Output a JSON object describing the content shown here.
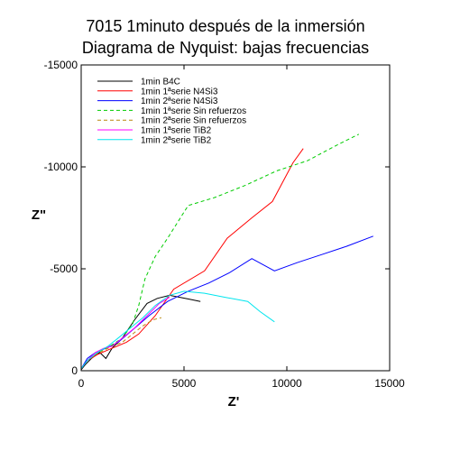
{
  "chart_data": {
    "type": "line",
    "title_lines": [
      "7015 1minuto después de la inmersión",
      "Diagrama de Nyquist: bajas frecuencias"
    ],
    "xlabel": "Z'",
    "ylabel": "Z\"",
    "xlim": [
      0,
      15000
    ],
    "ylim": [
      0,
      -15000
    ],
    "xticks": [
      0,
      5000,
      10000,
      15000
    ],
    "yticks": [
      0,
      -5000,
      -10000,
      -15000
    ],
    "grid": false,
    "legend_position": "top-left",
    "series": [
      {
        "name": "1min B4C",
        "color": "#000000",
        "dash": "solid",
        "x": [
          0,
          200,
          500,
          900,
          1200,
          1500,
          2000,
          2600,
          3200,
          3700,
          4300,
          4800,
          5300,
          5800
        ],
        "y": [
          -50,
          -300,
          -600,
          -900,
          -600,
          -1100,
          -1600,
          -2500,
          -3300,
          -3550,
          -3700,
          -3600,
          -3500,
          -3400
        ]
      },
      {
        "name": "1min 1ªserie N4Si3",
        "color": "#ff0000",
        "dash": "solid",
        "x": [
          0,
          300,
          800,
          1500,
          2200,
          2800,
          3600,
          4500,
          6000,
          7100,
          8300,
          9300,
          10300,
          10800
        ],
        "y": [
          -100,
          -500,
          -800,
          -1100,
          -1400,
          -1800,
          -2700,
          -4000,
          -4900,
          -6500,
          -7500,
          -8300,
          -10200,
          -10900
        ]
      },
      {
        "name": "1min 2ªserie N4Si3",
        "color": "#0000ff",
        "dash": "solid",
        "x": [
          0,
          300,
          700,
          1200,
          1800,
          2500,
          3300,
          4200,
          5200,
          6200,
          7200,
          8300,
          9400,
          10500,
          11700,
          12900,
          14200
        ],
        "y": [
          -100,
          -600,
          -900,
          -1100,
          -1400,
          -2000,
          -2700,
          -3400,
          -3900,
          -4300,
          -4800,
          -5500,
          -4900,
          -5300,
          -5700,
          -6100,
          -6600
        ]
      },
      {
        "name": "1min 1ªserie Sin refuerzos",
        "color": "#00cc00",
        "dash": "dashed",
        "x": [
          0,
          300,
          800,
          1400,
          2000,
          2500,
          2800,
          3100,
          3600,
          4200,
          5200,
          6500,
          8000,
          9500,
          11000,
          12500,
          13500
        ],
        "y": [
          -100,
          -500,
          -900,
          -1200,
          -1600,
          -2300,
          -3200,
          -4500,
          -5600,
          -6500,
          -8100,
          -8500,
          -9100,
          -9800,
          -10300,
          -11100,
          -11600
        ]
      },
      {
        "name": "1min 2ªserie Sin refuerzos",
        "color": "#b8860b",
        "dash": "dashed",
        "x": [
          0,
          300,
          700,
          1100,
          1500,
          2000,
          2500,
          3000,
          3500,
          3900
        ],
        "y": [
          -100,
          -500,
          -800,
          -1000,
          -1200,
          -1400,
          -1800,
          -2200,
          -2500,
          -2600
        ]
      },
      {
        "name": "1min 1ªserie TiB2",
        "color": "#ff00ff",
        "dash": "solid",
        "x": [
          0,
          300,
          700,
          1100,
          1500,
          2000,
          2600,
          3200,
          3800,
          4300
        ],
        "y": [
          -100,
          -500,
          -900,
          -1100,
          -1200,
          -1600,
          -2100,
          -2700,
          -3300,
          -3600
        ]
      },
      {
        "name": "1min 2ªserie TiB2",
        "color": "#00e5ee",
        "dash": "solid",
        "x": [
          0,
          300,
          800,
          1300,
          1800,
          2400,
          3000,
          3600,
          4300,
          5000,
          6000,
          7000,
          8100,
          8700,
          9400
        ],
        "y": [
          -100,
          -500,
          -900,
          -1200,
          -1600,
          -2100,
          -2600,
          -3200,
          -3700,
          -3900,
          -3800,
          -3600,
          -3400,
          -2900,
          -2400
        ]
      }
    ]
  }
}
